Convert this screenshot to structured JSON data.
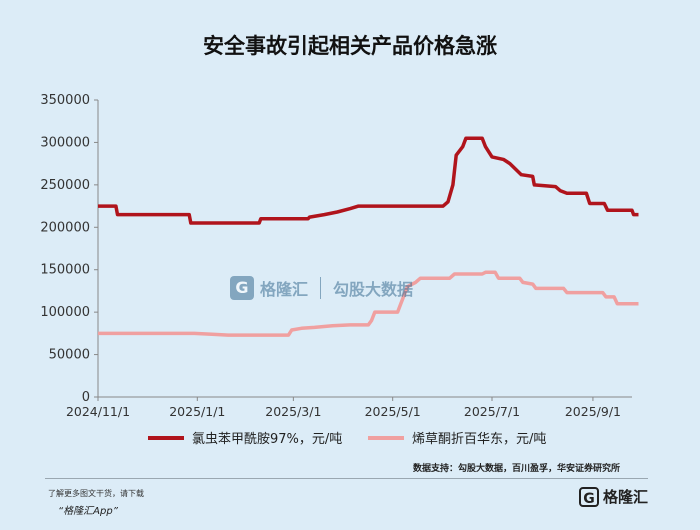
{
  "chart_data": {
    "type": "line",
    "title": "安全事故引起相关产品价格急涨",
    "xlabel": "",
    "ylabel": "",
    "x_ticks": [
      "2024/11/1",
      "2025/1/1",
      "2025/3/1",
      "2025/5/1",
      "2025/7/1",
      "2025/9/1"
    ],
    "x_range": [
      "2024-11-01",
      "2025-09-25"
    ],
    "y_ticks": [
      0,
      50000,
      100000,
      150000,
      200000,
      250000,
      300000,
      350000
    ],
    "ylim": [
      0,
      350000
    ],
    "grid": false,
    "legend_position": "bottom",
    "series": [
      {
        "name": "氯虫苯甲酰胺97%，元/吨",
        "color": "#b0141c",
        "points": [
          [
            "2024-11-01",
            225000
          ],
          [
            "2024-11-12",
            225000
          ],
          [
            "2024-11-13",
            215000
          ],
          [
            "2024-12-27",
            215000
          ],
          [
            "2024-12-28",
            205000
          ],
          [
            "2025-02-08",
            205000
          ],
          [
            "2025-02-09",
            210000
          ],
          [
            "2025-03-10",
            210000
          ],
          [
            "2025-03-11",
            212000
          ],
          [
            "2025-03-20",
            215000
          ],
          [
            "2025-03-28",
            218000
          ],
          [
            "2025-04-05",
            222000
          ],
          [
            "2025-04-10",
            225000
          ],
          [
            "2025-06-01",
            225000
          ],
          [
            "2025-06-04",
            230000
          ],
          [
            "2025-06-07",
            250000
          ],
          [
            "2025-06-09",
            285000
          ],
          [
            "2025-06-13",
            295000
          ],
          [
            "2025-06-15",
            305000
          ],
          [
            "2025-06-25",
            305000
          ],
          [
            "2025-06-27",
            295000
          ],
          [
            "2025-07-01",
            283000
          ],
          [
            "2025-07-08",
            280000
          ],
          [
            "2025-07-12",
            275000
          ],
          [
            "2025-07-19",
            262000
          ],
          [
            "2025-07-26",
            260000
          ],
          [
            "2025-07-27",
            250000
          ],
          [
            "2025-08-09",
            248000
          ],
          [
            "2025-08-12",
            243000
          ],
          [
            "2025-08-16",
            240000
          ],
          [
            "2025-08-28",
            240000
          ],
          [
            "2025-08-30",
            228000
          ],
          [
            "2025-09-08",
            228000
          ],
          [
            "2025-09-10",
            220000
          ],
          [
            "2025-09-25",
            220000
          ],
          [
            "2025-09-26",
            215000
          ],
          [
            "2025-09-29",
            215000
          ]
        ]
      },
      {
        "name": "烯草酮折百华东，元/吨",
        "color": "#f0a0a0",
        "points": [
          [
            "2024-11-01",
            75000
          ],
          [
            "2024-12-30",
            75000
          ],
          [
            "2025-01-10",
            74000
          ],
          [
            "2025-01-20",
            73000
          ],
          [
            "2025-02-26",
            73000
          ],
          [
            "2025-02-28",
            79000
          ],
          [
            "2025-03-06",
            81000
          ],
          [
            "2025-03-14",
            82000
          ],
          [
            "2025-03-25",
            84000
          ],
          [
            "2025-04-05",
            85000
          ],
          [
            "2025-04-16",
            85000
          ],
          [
            "2025-04-18",
            90000
          ],
          [
            "2025-04-20",
            100000
          ],
          [
            "2025-05-04",
            100000
          ],
          [
            "2025-05-06",
            110000
          ],
          [
            "2025-05-08",
            120000
          ],
          [
            "2025-05-10",
            130000
          ],
          [
            "2025-05-15",
            135000
          ],
          [
            "2025-05-18",
            140000
          ],
          [
            "2025-06-05",
            140000
          ],
          [
            "2025-06-08",
            145000
          ],
          [
            "2025-06-25",
            145000
          ],
          [
            "2025-06-27",
            147000
          ],
          [
            "2025-07-03",
            147000
          ],
          [
            "2025-07-05",
            140000
          ],
          [
            "2025-07-18",
            140000
          ],
          [
            "2025-07-20",
            135000
          ],
          [
            "2025-07-26",
            133000
          ],
          [
            "2025-07-28",
            128000
          ],
          [
            "2025-08-14",
            128000
          ],
          [
            "2025-08-16",
            123000
          ],
          [
            "2025-09-07",
            123000
          ],
          [
            "2025-09-09",
            118000
          ],
          [
            "2025-09-14",
            118000
          ],
          [
            "2025-09-16",
            110000
          ],
          [
            "2025-09-29",
            110000
          ]
        ]
      }
    ]
  },
  "source": "数据支持：勾股大数据，百川盈孚，华安证券研究所",
  "footer": {
    "tip": "了解更多图文干货，请下载",
    "app": "“格隆汇App”",
    "logo_text": "格隆汇"
  },
  "watermark": {
    "left": "格隆汇",
    "right": "勾股大数据"
  }
}
